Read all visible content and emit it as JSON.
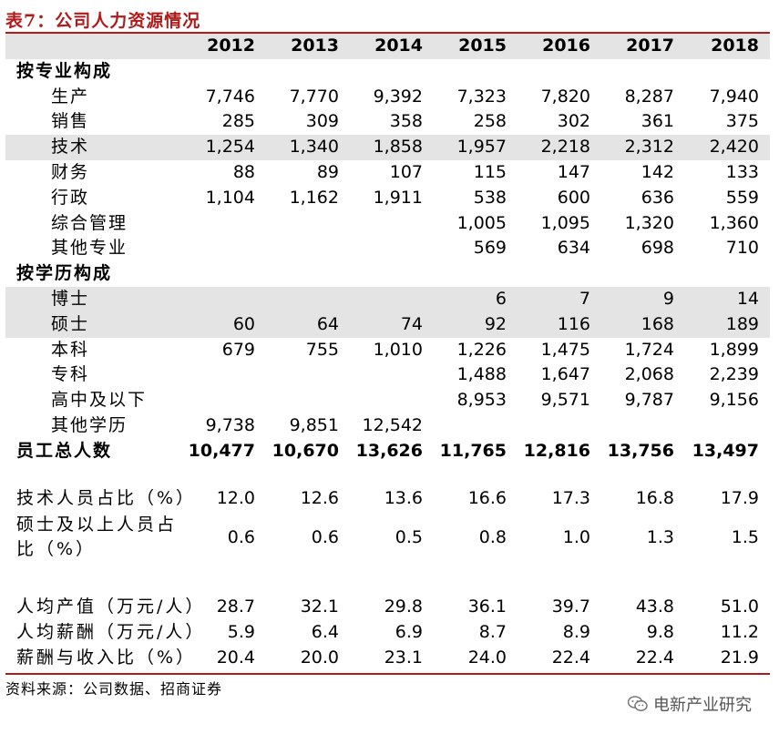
{
  "title": "表7：公司人力资源情况",
  "years": [
    "2012",
    "2013",
    "2014",
    "2015",
    "2016",
    "2017",
    "2018"
  ],
  "sections": {
    "by_specialty": "按专业构成",
    "by_education": "按学历构成"
  },
  "specialty_rows": [
    {
      "label": "生产",
      "values": [
        "7,746",
        "7,770",
        "9,392",
        "7,323",
        "7,820",
        "8,287",
        "7,940"
      ]
    },
    {
      "label": "销售",
      "values": [
        "285",
        "309",
        "358",
        "258",
        "302",
        "361",
        "375"
      ]
    },
    {
      "label": "技术",
      "values": [
        "1,254",
        "1,340",
        "1,858",
        "1,957",
        "2,218",
        "2,312",
        "2,420"
      ]
    },
    {
      "label": "财务",
      "values": [
        "88",
        "89",
        "107",
        "115",
        "147",
        "142",
        "133"
      ]
    },
    {
      "label": "行政",
      "values": [
        "1,104",
        "1,162",
        "1,911",
        "538",
        "600",
        "636",
        "559"
      ]
    },
    {
      "label": "综合管理",
      "values": [
        "",
        "",
        "",
        "1,005",
        "1,095",
        "1,320",
        "1,360"
      ]
    },
    {
      "label": "其他专业",
      "values": [
        "",
        "",
        "",
        "569",
        "634",
        "698",
        "710"
      ]
    }
  ],
  "education_rows": [
    {
      "label": "博士",
      "values": [
        "",
        "",
        "",
        "6",
        "7",
        "9",
        "14"
      ]
    },
    {
      "label": "硕士",
      "values": [
        "60",
        "64",
        "74",
        "92",
        "116",
        "168",
        "189"
      ]
    },
    {
      "label": "本科",
      "values": [
        "679",
        "755",
        "1,010",
        "1,226",
        "1,475",
        "1,724",
        "1,899"
      ]
    },
    {
      "label": "专科",
      "values": [
        "",
        "",
        "",
        "1,488",
        "1,647",
        "2,068",
        "2,239"
      ]
    },
    {
      "label": "高中及以下",
      "values": [
        "",
        "",
        "",
        "8,953",
        "9,571",
        "9,787",
        "9,156"
      ]
    },
    {
      "label": "其他学历",
      "values": [
        "9,738",
        "9,851",
        "12,542",
        "",
        "",
        "",
        ""
      ]
    }
  ],
  "total_row": {
    "label": "员工总人数",
    "values": [
      "10,477",
      "10,670",
      "13,626",
      "11,765",
      "12,816",
      "13,756",
      "13,497"
    ]
  },
  "ratio_rows": [
    {
      "label": "技术人员占比（%）",
      "values": [
        "12.0",
        "12.6",
        "13.6",
        "16.6",
        "17.3",
        "16.8",
        "17.9"
      ]
    },
    {
      "label": "硕士及以上人员占比（%）",
      "values": [
        "0.6",
        "0.6",
        "0.5",
        "0.8",
        "1.0",
        "1.3",
        "1.5"
      ]
    }
  ],
  "per_capita_rows": [
    {
      "label": "人均产值（万元/人）",
      "values": [
        "28.7",
        "32.1",
        "29.8",
        "36.1",
        "39.7",
        "43.8",
        "51.0"
      ]
    },
    {
      "label": "人均薪酬（万元/人）",
      "values": [
        "5.9",
        "6.4",
        "6.9",
        "8.7",
        "8.9",
        "9.8",
        "11.2"
      ]
    },
    {
      "label": "薪酬与收入比（%）",
      "values": [
        "20.4",
        "20.0",
        "23.1",
        "24.0",
        "22.4",
        "22.4",
        "21.9"
      ]
    }
  ],
  "source": "资料来源：公司数据、招商证券",
  "brand": "电新产业研究",
  "colors": {
    "accent": "#b01a1a",
    "shade": "#e4e4e4"
  }
}
